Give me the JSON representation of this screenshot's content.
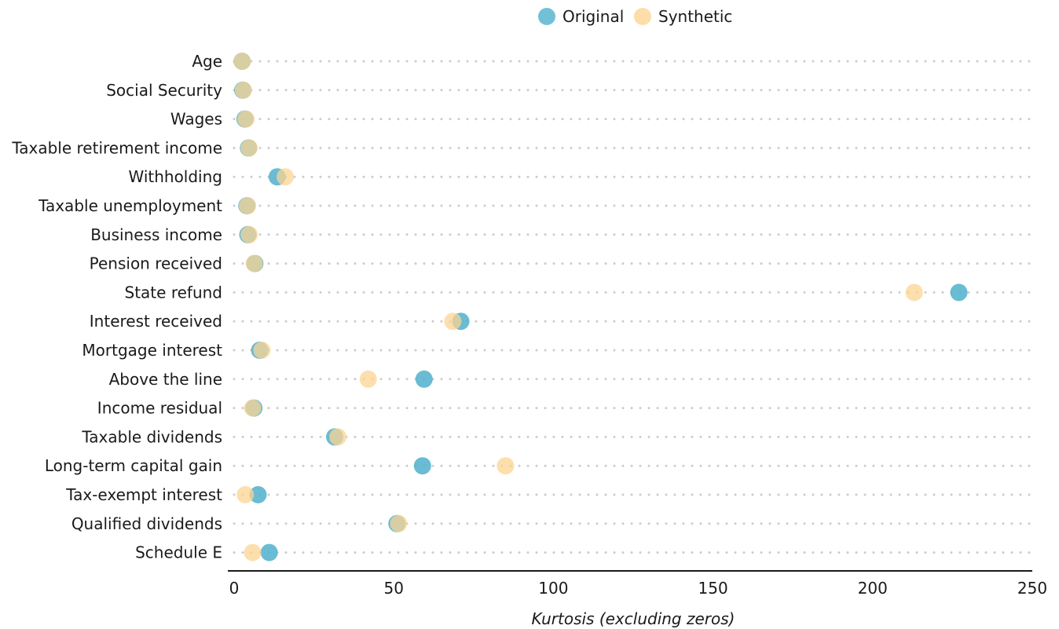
{
  "chart_data": {
    "type": "scatter",
    "title": "",
    "xlabel": "Kurtosis (excluding zeros)",
    "ylabel": "",
    "xlim": [
      0,
      250
    ],
    "xticks": [
      0,
      50,
      100,
      150,
      200,
      250
    ],
    "grid": "dotted horizontal guide per category",
    "legend_position": "top",
    "categories": [
      "Age",
      "Social Security",
      "Wages",
      "Taxable retirement income",
      "Withholding",
      "Taxable unemployment",
      "Business income",
      "Pension received",
      "State refund",
      "Interest received",
      "Mortgage interest",
      "Above the line",
      "Income residual",
      "Taxable dividends",
      "Long-term capital gain",
      "Tax-exempt interest",
      "Qualified dividends",
      "Schedule E"
    ],
    "series": [
      {
        "name": "Original",
        "color": "#4fb0cb",
        "values": [
          2.5,
          2.7,
          3.4,
          4.5,
          13.5,
          4.0,
          4.3,
          6.5,
          227,
          71,
          8,
          59.5,
          6.2,
          31.5,
          59,
          7.5,
          51,
          11
        ]
      },
      {
        "name": "Synthetic",
        "color": "#fcd493",
        "values": [
          2.5,
          2.9,
          3.7,
          4.7,
          16,
          4.2,
          4.7,
          6.3,
          213,
          68.5,
          8.7,
          42,
          5.8,
          32.5,
          85,
          3.5,
          51.5,
          5.8
        ]
      }
    ]
  }
}
